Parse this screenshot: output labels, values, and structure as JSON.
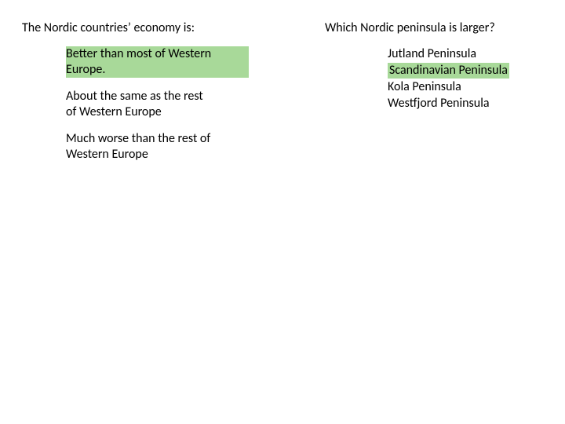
{
  "highlight_color": "#a8d999",
  "background_color": "#ffffff",
  "text_color": "#000000",
  "font_size": 16,
  "left": {
    "question": "The Nordic countries’ economy is:",
    "options": [
      {
        "text_line1": "Better than most of Western",
        "text_line2": "Europe.",
        "highlighted": true
      },
      {
        "text_line1": "About the same as the rest",
        "text_line2": "of Western Europe",
        "highlighted": false
      },
      {
        "text_line1": "Much worse than the rest of",
        "text_line2": "Western Europe",
        "highlighted": false
      }
    ]
  },
  "right": {
    "question": "Which Nordic peninsula is larger?",
    "options": [
      {
        "text": "Jutland Peninsula",
        "highlighted": false
      },
      {
        "text": "Scandinavian Peninsula",
        "highlighted": true
      },
      {
        "text": "Kola Peninsula",
        "highlighted": false
      },
      {
        "text": "Westfjord  Peninsula",
        "highlighted": false
      }
    ]
  }
}
